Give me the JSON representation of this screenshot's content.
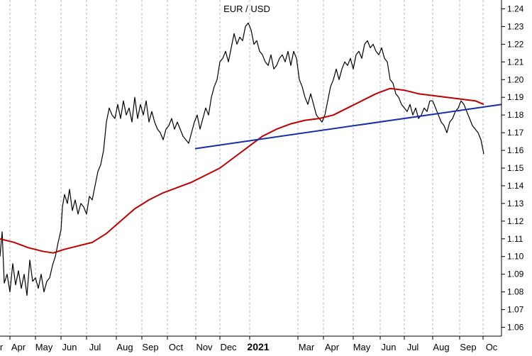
{
  "chart_data": {
    "type": "line",
    "title": "EUR / USD",
    "xlabel": "",
    "ylabel": "",
    "ylim": [
      1.055,
      1.245
    ],
    "yticks": [
      1.06,
      1.07,
      1.08,
      1.09,
      1.1,
      1.11,
      1.12,
      1.13,
      1.14,
      1.15,
      1.16,
      1.17,
      1.18,
      1.19,
      1.2,
      1.21,
      1.22,
      1.23,
      1.24
    ],
    "x_tick_labels": [
      "r",
      "Apr",
      "May",
      "Jun",
      "Jul",
      "Aug",
      "Sep",
      "Oct",
      "Nov",
      "Dec",
      "2021",
      "Mar",
      "Apr",
      "May",
      "Jun",
      "Jul",
      "Aug",
      "Sep",
      "Oc"
    ],
    "grid": "vertical dashed",
    "series": [
      {
        "color": "#000000",
        "points": [
          [
            0,
            1.1
          ],
          [
            3,
            1.114
          ],
          [
            6,
            1.085
          ],
          [
            10,
            1.09
          ],
          [
            14,
            1.08
          ],
          [
            18,
            1.096
          ],
          [
            22,
            1.084
          ],
          [
            26,
            1.092
          ],
          [
            30,
            1.082
          ],
          [
            34,
            1.09
          ],
          [
            38,
            1.078
          ],
          [
            42,
            1.098
          ],
          [
            46,
            1.086
          ],
          [
            50,
            1.088
          ],
          [
            54,
            1.082
          ],
          [
            58,
            1.09
          ],
          [
            62,
            1.08
          ],
          [
            66,
            1.086
          ],
          [
            70,
            1.088
          ],
          [
            74,
            1.095
          ],
          [
            78,
            1.1
          ],
          [
            82,
            1.108
          ],
          [
            86,
            1.115
          ],
          [
            88,
            1.128
          ],
          [
            91,
            1.135
          ],
          [
            95,
            1.13
          ],
          [
            98,
            1.138
          ],
          [
            102,
            1.126
          ],
          [
            106,
            1.132
          ],
          [
            110,
            1.124
          ],
          [
            114,
            1.13
          ],
          [
            118,
            1.128
          ],
          [
            122,
            1.124
          ],
          [
            126,
            1.134
          ],
          [
            130,
            1.132
          ],
          [
            134,
            1.14
          ],
          [
            138,
            1.148
          ],
          [
            142,
            1.152
          ],
          [
            146,
            1.16
          ],
          [
            150,
            1.176
          ],
          [
            154,
            1.184
          ],
          [
            158,
            1.18
          ],
          [
            162,
            1.178
          ],
          [
            166,
            1.186
          ],
          [
            170,
            1.178
          ],
          [
            174,
            1.188
          ],
          [
            178,
            1.18
          ],
          [
            182,
            1.184
          ],
          [
            186,
            1.176
          ],
          [
            190,
            1.19
          ],
          [
            194,
            1.178
          ],
          [
            198,
            1.186
          ],
          [
            202,
            1.18
          ],
          [
            206,
            1.188
          ],
          [
            210,
            1.176
          ],
          [
            214,
            1.182
          ],
          [
            218,
            1.176
          ],
          [
            222,
            1.172
          ],
          [
            226,
            1.17
          ],
          [
            230,
            1.166
          ],
          [
            234,
            1.172
          ],
          [
            238,
            1.174
          ],
          [
            242,
            1.178
          ],
          [
            246,
            1.172
          ],
          [
            250,
            1.176
          ],
          [
            254,
            1.172
          ],
          [
            258,
            1.168
          ],
          [
            262,
            1.166
          ],
          [
            266,
            1.164
          ],
          [
            270,
            1.17
          ],
          [
            274,
            1.176
          ],
          [
            278,
            1.18
          ],
          [
            282,
            1.172
          ],
          [
            286,
            1.178
          ],
          [
            290,
            1.184
          ],
          [
            294,
            1.18
          ],
          [
            298,
            1.19
          ],
          [
            302,
            1.196
          ],
          [
            306,
            1.2
          ],
          [
            310,
            1.21
          ],
          [
            314,
            1.212
          ],
          [
            318,
            1.216
          ],
          [
            322,
            1.21
          ],
          [
            326,
            1.218
          ],
          [
            330,
            1.226
          ],
          [
            334,
            1.22
          ],
          [
            338,
            1.224
          ],
          [
            342,
            1.222
          ],
          [
            346,
            1.23
          ],
          [
            350,
            1.232
          ],
          [
            354,
            1.228
          ],
          [
            358,
            1.22
          ],
          [
            362,
            1.222
          ],
          [
            366,
            1.216
          ],
          [
            370,
            1.214
          ],
          [
            374,
            1.21
          ],
          [
            378,
            1.208
          ],
          [
            382,
            1.214
          ],
          [
            386,
            1.206
          ],
          [
            390,
            1.208
          ],
          [
            394,
            1.212
          ],
          [
            398,
            1.214
          ],
          [
            402,
            1.21
          ],
          [
            406,
            1.216
          ],
          [
            410,
            1.208
          ],
          [
            414,
            1.216
          ],
          [
            418,
            1.212
          ],
          [
            422,
            1.2
          ],
          [
            426,
            1.196
          ],
          [
            430,
            1.19
          ],
          [
            434,
            1.186
          ],
          [
            438,
            1.192
          ],
          [
            442,
            1.186
          ],
          [
            446,
            1.18
          ],
          [
            450,
            1.178
          ],
          [
            454,
            1.176
          ],
          [
            458,
            1.18
          ],
          [
            462,
            1.188
          ],
          [
            466,
            1.196
          ],
          [
            470,
            1.2
          ],
          [
            474,
            1.206
          ],
          [
            478,
            1.2
          ],
          [
            482,
            1.206
          ],
          [
            486,
            1.21
          ],
          [
            490,
            1.208
          ],
          [
            494,
            1.212
          ],
          [
            498,
            1.206
          ],
          [
            502,
            1.214
          ],
          [
            506,
            1.216
          ],
          [
            510,
            1.212
          ],
          [
            514,
            1.22
          ],
          [
            518,
            1.222
          ],
          [
            522,
            1.218
          ],
          [
            526,
            1.22
          ],
          [
            530,
            1.216
          ],
          [
            534,
            1.214
          ],
          [
            538,
            1.218
          ],
          [
            542,
            1.212
          ],
          [
            546,
            1.21
          ],
          [
            550,
            1.2
          ],
          [
            554,
            1.198
          ],
          [
            558,
            1.192
          ],
          [
            562,
            1.19
          ],
          [
            566,
            1.186
          ],
          [
            570,
            1.184
          ],
          [
            574,
            1.182
          ],
          [
            578,
            1.186
          ],
          [
            582,
            1.18
          ],
          [
            586,
            1.184
          ],
          [
            590,
            1.178
          ],
          [
            594,
            1.18
          ],
          [
            598,
            1.184
          ],
          [
            602,
            1.182
          ],
          [
            606,
            1.188
          ],
          [
            610,
            1.188
          ],
          [
            614,
            1.184
          ],
          [
            618,
            1.18
          ],
          [
            622,
            1.176
          ],
          [
            626,
            1.174
          ],
          [
            630,
            1.17
          ],
          [
            634,
            1.176
          ],
          [
            638,
            1.178
          ],
          [
            642,
            1.182
          ],
          [
            646,
            1.184
          ],
          [
            650,
            1.188
          ],
          [
            654,
            1.186
          ],
          [
            658,
            1.182
          ],
          [
            662,
            1.178
          ],
          [
            666,
            1.174
          ],
          [
            670,
            1.172
          ],
          [
            674,
            1.17
          ],
          [
            678,
            1.166
          ],
          [
            682,
            1.158
          ]
        ]
      },
      {
        "color": "#c00000",
        "points": [
          [
            0,
            1.11
          ],
          [
            20,
            1.108
          ],
          [
            40,
            1.105
          ],
          [
            60,
            1.103
          ],
          [
            75,
            1.102
          ],
          [
            90,
            1.104
          ],
          [
            110,
            1.106
          ],
          [
            130,
            1.108
          ],
          [
            150,
            1.113
          ],
          [
            170,
            1.12
          ],
          [
            190,
            1.127
          ],
          [
            210,
            1.132
          ],
          [
            230,
            1.136
          ],
          [
            250,
            1.139
          ],
          [
            270,
            1.142
          ],
          [
            290,
            1.146
          ],
          [
            310,
            1.15
          ],
          [
            330,
            1.156
          ],
          [
            350,
            1.162
          ],
          [
            370,
            1.168
          ],
          [
            390,
            1.172
          ],
          [
            410,
            1.175
          ],
          [
            430,
            1.177
          ],
          [
            450,
            1.178
          ],
          [
            470,
            1.18
          ],
          [
            490,
            1.184
          ],
          [
            510,
            1.188
          ],
          [
            530,
            1.192
          ],
          [
            550,
            1.195
          ],
          [
            570,
            1.194
          ],
          [
            590,
            1.192
          ],
          [
            610,
            1.191
          ],
          [
            630,
            1.19
          ],
          [
            650,
            1.189
          ],
          [
            670,
            1.188
          ],
          [
            682,
            1.186
          ]
        ]
      },
      {
        "color": "#1a2da8",
        "points": [
          [
            275,
            1.161
          ],
          [
            707,
            1.186
          ]
        ]
      }
    ]
  }
}
